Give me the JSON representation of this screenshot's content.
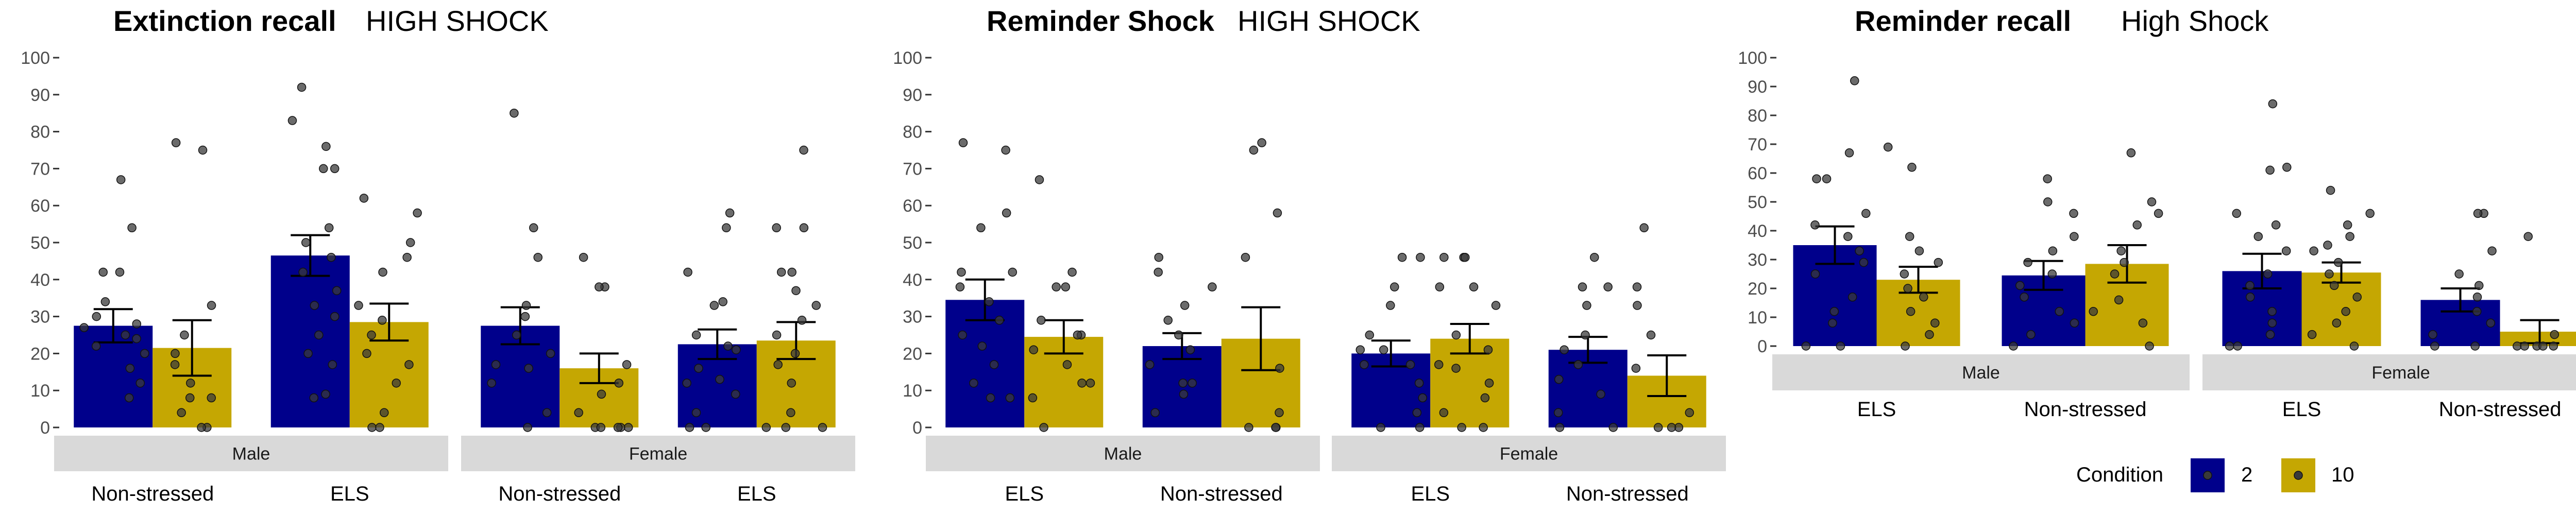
{
  "legend": {
    "title": "Condition",
    "items": [
      {
        "label": "2",
        "color": "#00008b"
      },
      {
        "label": "10",
        "color": "#c5a702"
      }
    ]
  },
  "chart_data": [
    {
      "type": "bar",
      "title": "Extinction recall",
      "subtitle": "HIGH SHOCK",
      "ylim": [
        0,
        100
      ],
      "yticks": [
        0,
        10,
        20,
        30,
        40,
        50,
        60,
        70,
        80,
        90,
        100
      ],
      "panels": [
        {
          "strip": "Male",
          "groups": [
            {
              "label": "Non-stressed",
              "bars": [
                {
                  "condition": "2",
                  "mean": 27.5,
                  "se": 4.5,
                  "points": [
                    67,
                    54,
                    42,
                    42,
                    34,
                    30,
                    28,
                    27,
                    25,
                    24,
                    22,
                    20,
                    16,
                    12,
                    8
                  ]
                },
                {
                  "condition": "10",
                  "mean": 21.5,
                  "se": 7.5,
                  "points": [
                    77,
                    75,
                    33,
                    25,
                    20,
                    17,
                    12,
                    8,
                    8,
                    4,
                    0,
                    0
                  ]
                }
              ]
            },
            {
              "label": "ELS",
              "bars": [
                {
                  "condition": "2",
                  "mean": 46.5,
                  "se": 5.5,
                  "points": [
                    92,
                    83,
                    76,
                    70,
                    70,
                    54,
                    50,
                    46,
                    42,
                    37,
                    33,
                    30,
                    25,
                    20,
                    17,
                    9,
                    8
                  ]
                },
                {
                  "condition": "10",
                  "mean": 28.5,
                  "se": 5.0,
                  "points": [
                    62,
                    58,
                    50,
                    46,
                    42,
                    33,
                    29,
                    25,
                    20,
                    17,
                    12,
                    4,
                    0,
                    0
                  ]
                }
              ]
            }
          ]
        },
        {
          "strip": "Female",
          "groups": [
            {
              "label": "Non-stressed",
              "bars": [
                {
                  "condition": "2",
                  "mean": 27.5,
                  "se": 5.0,
                  "points": [
                    85,
                    54,
                    46,
                    33,
                    30,
                    25,
                    20,
                    17,
                    16,
                    12,
                    4,
                    0
                  ]
                },
                {
                  "condition": "10",
                  "mean": 16.0,
                  "se": 4.0,
                  "points": [
                    46,
                    38,
                    38,
                    17,
                    12,
                    9,
                    4,
                    0,
                    0,
                    0,
                    0,
                    0
                  ]
                }
              ]
            },
            {
              "label": "ELS",
              "bars": [
                {
                  "condition": "2",
                  "mean": 22.5,
                  "se": 4.0,
                  "points": [
                    58,
                    54,
                    42,
                    34,
                    33,
                    25,
                    22,
                    21,
                    16,
                    13,
                    12,
                    9,
                    4,
                    0,
                    0
                  ]
                },
                {
                  "condition": "10",
                  "mean": 23.5,
                  "se": 5.0,
                  "points": [
                    75,
                    54,
                    54,
                    42,
                    42,
                    37,
                    33,
                    29,
                    25,
                    20,
                    17,
                    12,
                    4,
                    0,
                    0,
                    0
                  ]
                }
              ]
            }
          ]
        }
      ]
    },
    {
      "type": "bar",
      "title": "Reminder Shock",
      "subtitle": "HIGH SHOCK",
      "ylim": [
        0,
        100
      ],
      "yticks": [
        0,
        10,
        20,
        30,
        40,
        50,
        60,
        70,
        80,
        90,
        100
      ],
      "panels": [
        {
          "strip": "Male",
          "groups": [
            {
              "label": "ELS",
              "bars": [
                {
                  "condition": "2",
                  "mean": 34.5,
                  "se": 5.5,
                  "points": [
                    77,
                    75,
                    58,
                    54,
                    42,
                    42,
                    38,
                    34,
                    29,
                    25,
                    22,
                    17,
                    12,
                    8,
                    8
                  ]
                },
                {
                  "condition": "10",
                  "mean": 24.5,
                  "se": 4.5,
                  "points": [
                    67,
                    42,
                    38,
                    38,
                    29,
                    25,
                    25,
                    21,
                    17,
                    12,
                    12,
                    8,
                    0
                  ]
                }
              ]
            },
            {
              "label": "Non-stressed",
              "bars": [
                {
                  "condition": "2",
                  "mean": 22.0,
                  "se": 3.5,
                  "points": [
                    46,
                    42,
                    38,
                    33,
                    29,
                    25,
                    21,
                    17,
                    12,
                    12,
                    9,
                    4
                  ]
                },
                {
                  "condition": "10",
                  "mean": 24.0,
                  "se": 8.5,
                  "points": [
                    77,
                    75,
                    58,
                    46,
                    16,
                    4,
                    0,
                    0,
                    0
                  ]
                }
              ]
            }
          ]
        },
        {
          "strip": "Female",
          "groups": [
            {
              "label": "ELS",
              "bars": [
                {
                  "condition": "2",
                  "mean": 20.0,
                  "se": 3.5,
                  "points": [
                    46,
                    46,
                    38,
                    33,
                    25,
                    21,
                    21,
                    17,
                    17,
                    12,
                    8,
                    4,
                    0,
                    0
                  ]
                },
                {
                  "condition": "10",
                  "mean": 24.0,
                  "se": 4.0,
                  "points": [
                    46,
                    46,
                    46,
                    38,
                    38,
                    33,
                    25,
                    21,
                    17,
                    16,
                    12,
                    8,
                    4,
                    0,
                    0
                  ]
                }
              ]
            },
            {
              "label": "Non-stressed",
              "bars": [
                {
                  "condition": "2",
                  "mean": 21.0,
                  "se": 3.5,
                  "points": [
                    46,
                    38,
                    38,
                    33,
                    25,
                    21,
                    17,
                    13,
                    9,
                    4,
                    0,
                    0
                  ]
                },
                {
                  "condition": "10",
                  "mean": 14.0,
                  "se": 5.5,
                  "points": [
                    54,
                    38,
                    33,
                    25,
                    16,
                    4,
                    0,
                    0,
                    0
                  ]
                }
              ]
            }
          ]
        }
      ]
    },
    {
      "type": "bar",
      "title": "Reminder recall",
      "subtitle": "High Shock",
      "ylim": [
        0,
        100
      ],
      "yticks": [
        0,
        10,
        20,
        30,
        40,
        50,
        60,
        70,
        80,
        90,
        100
      ],
      "panels": [
        {
          "strip": "Male",
          "groups": [
            {
              "label": "ELS",
              "bars": [
                {
                  "condition": "2",
                  "mean": 35.0,
                  "se": 6.5,
                  "points": [
                    92,
                    67,
                    58,
                    58,
                    46,
                    42,
                    38,
                    33,
                    29,
                    25,
                    17,
                    12,
                    8,
                    0,
                    0
                  ]
                },
                {
                  "condition": "10",
                  "mean": 23.0,
                  "se": 4.5,
                  "points": [
                    69,
                    62,
                    38,
                    33,
                    29,
                    25,
                    20,
                    17,
                    12,
                    8,
                    4,
                    0
                  ]
                }
              ]
            },
            {
              "label": "Non-stressed",
              "bars": [
                {
                  "condition": "2",
                  "mean": 24.5,
                  "se": 5.0,
                  "points": [
                    58,
                    50,
                    46,
                    38,
                    33,
                    29,
                    25,
                    21,
                    17,
                    12,
                    8,
                    4,
                    0
                  ]
                },
                {
                  "condition": "10",
                  "mean": 28.5,
                  "se": 6.5,
                  "points": [
                    67,
                    50,
                    46,
                    42,
                    33,
                    29,
                    25,
                    16,
                    12,
                    8,
                    0
                  ]
                }
              ]
            }
          ]
        },
        {
          "strip": "Female",
          "groups": [
            {
              "label": "ELS",
              "bars": [
                {
                  "condition": "2",
                  "mean": 26.0,
                  "se": 6.0,
                  "points": [
                    84,
                    62,
                    61,
                    46,
                    42,
                    38,
                    33,
                    25,
                    21,
                    17,
                    12,
                    8,
                    4,
                    0,
                    0
                  ]
                },
                {
                  "condition": "10",
                  "mean": 25.5,
                  "se": 3.5,
                  "points": [
                    54,
                    46,
                    42,
                    38,
                    35,
                    33,
                    29,
                    25,
                    21,
                    17,
                    12,
                    8,
                    4,
                    0
                  ]
                }
              ]
            },
            {
              "label": "Non-stressed",
              "bars": [
                {
                  "condition": "2",
                  "mean": 16.0,
                  "se": 4.0,
                  "points": [
                    46,
                    46,
                    33,
                    25,
                    21,
                    17,
                    12,
                    8,
                    4,
                    0,
                    0
                  ]
                },
                {
                  "condition": "10",
                  "mean": 5.0,
                  "se": 4.0,
                  "points": [
                    38,
                    4,
                    0,
                    0,
                    0,
                    0,
                    0
                  ]
                }
              ]
            }
          ]
        }
      ]
    }
  ]
}
